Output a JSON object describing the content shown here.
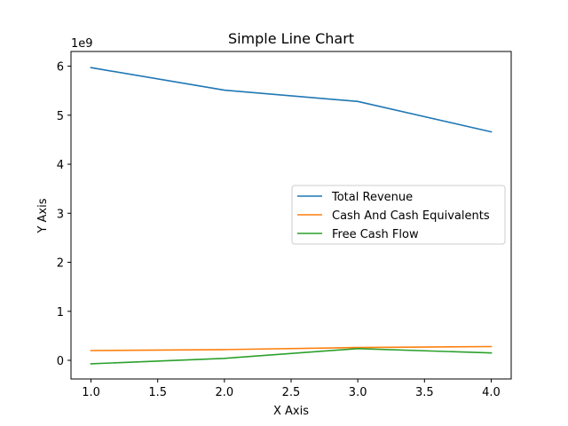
{
  "chart_data": {
    "type": "line",
    "title": "Simple Line Chart",
    "xlabel": "X Axis",
    "ylabel": "Y Axis",
    "y_offset_label": "1e9",
    "x": [
      1.0,
      2.0,
      3.0,
      4.0
    ],
    "x_ticks": [
      "1.0",
      "1.5",
      "2.0",
      "2.5",
      "3.0",
      "3.5",
      "4.0"
    ],
    "y_ticks": [
      "0",
      "1",
      "2",
      "3",
      "4",
      "5",
      "6"
    ],
    "xlim": [
      0.85,
      4.15
    ],
    "ylim": [
      -0.38,
      6.3
    ],
    "y_scale_note": "values in units of 1e9",
    "grid": false,
    "legend_position": "center-right",
    "series": [
      {
        "name": "Total Revenue",
        "color": "#1f77b4",
        "values": [
          5.97,
          5.51,
          5.28,
          4.66
        ]
      },
      {
        "name": "Cash And Cash Equivalents",
        "color": "#ff7f0e",
        "values": [
          0.2,
          0.22,
          0.26,
          0.28
        ]
      },
      {
        "name": "Free Cash Flow",
        "color": "#2ca02c",
        "values": [
          -0.07,
          0.04,
          0.24,
          0.15
        ]
      }
    ]
  }
}
